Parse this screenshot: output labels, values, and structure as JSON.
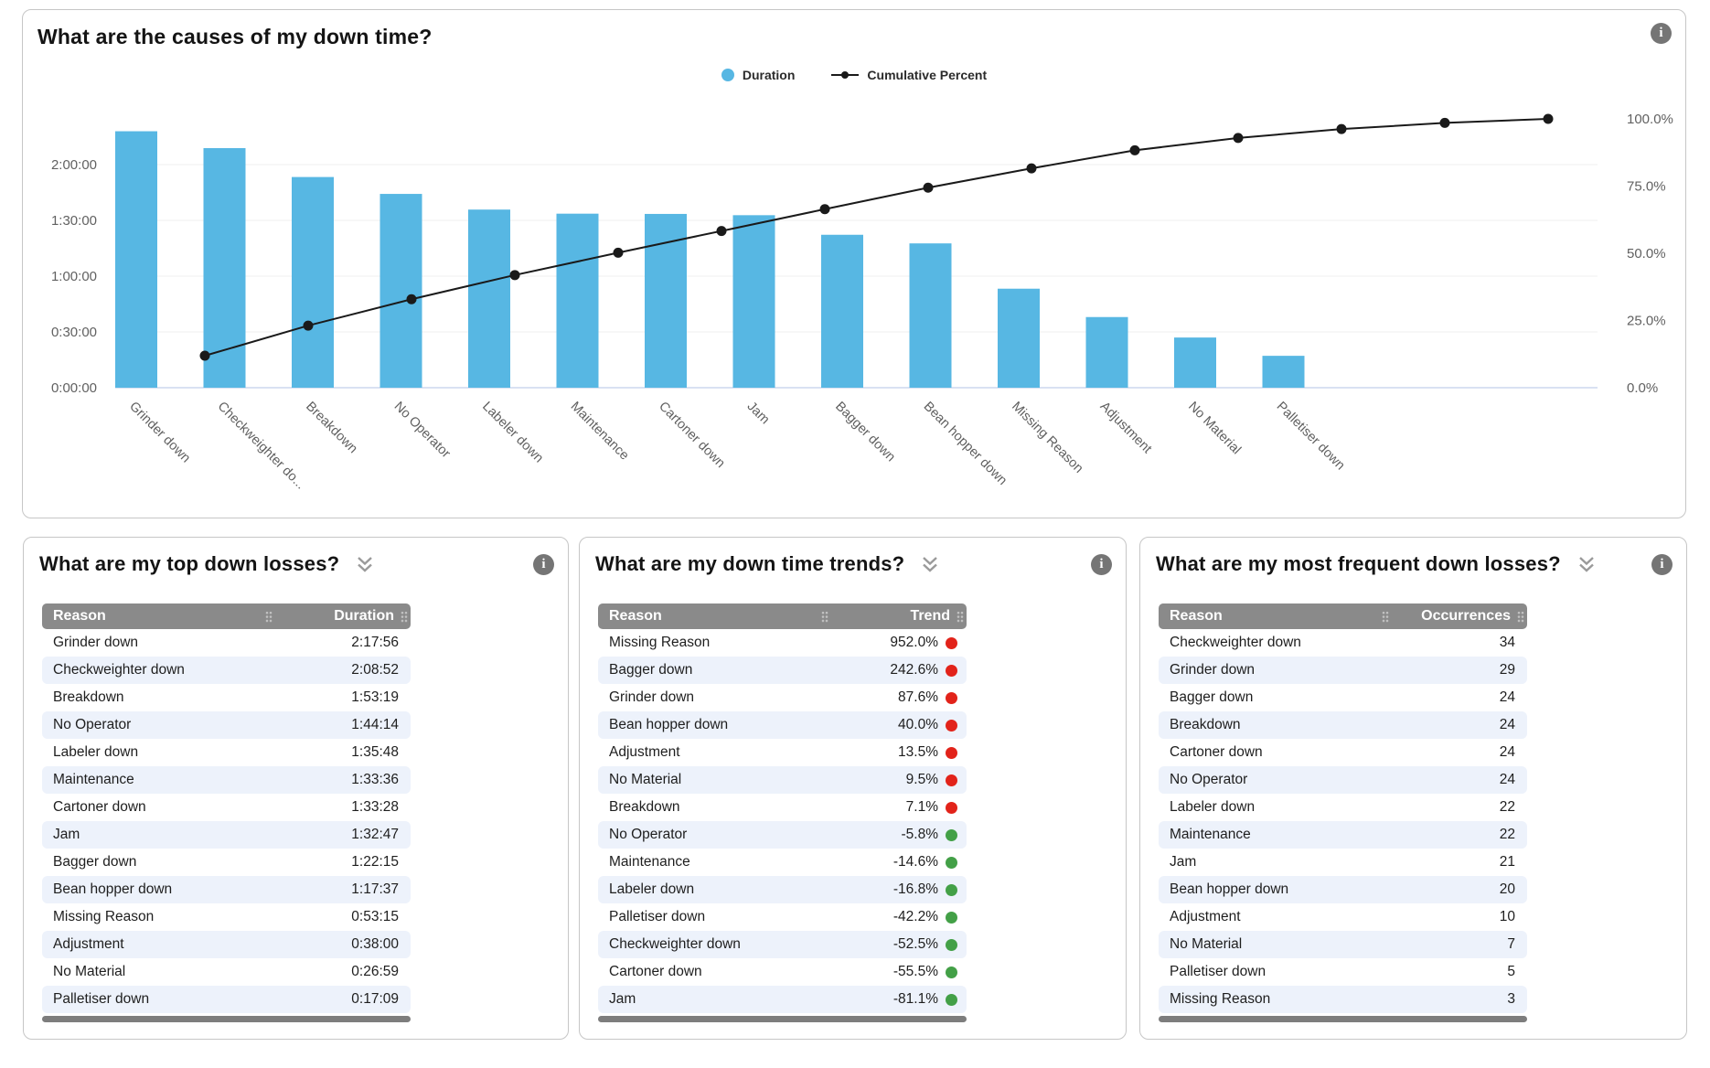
{
  "colors": {
    "bar_blue": "#57b7e3",
    "line_black": "#1a1a1a",
    "indicator": {
      "red": "#e2231a",
      "green": "#43a047"
    },
    "table_header_gray": "#8a8a8a",
    "row_stripe": "#edf2fb",
    "info_icon_gray": "#757575"
  },
  "icons": {
    "info_glyph": "i"
  },
  "pareto": {
    "title": "What are the causes of my down time?",
    "legend": [
      {
        "label": "Duration",
        "marker": "circle",
        "color": "#57b7e3"
      },
      {
        "label": "Cumulative Percent",
        "marker": "line-dot",
        "color": "#1a1a1a"
      }
    ]
  },
  "chart_data": {
    "type": "pareto (bar + cumulative line)",
    "title": "What are the causes of my down time?",
    "categories": [
      "Grinder down",
      "Checkweighter do...",
      "Breakdown",
      "No Operator",
      "Labeler down",
      "Maintenance",
      "Cartoner down",
      "Jam",
      "Bagger down",
      "Bean hopper down",
      "Missing Reason",
      "Adjustment",
      "No Material",
      "Palletiser down"
    ],
    "series": [
      {
        "name": "Duration",
        "type": "bar",
        "axis": "left",
        "color": "#57b7e3",
        "values": [
          "2:17:56",
          "2:08:52",
          "1:53:19",
          "1:44:14",
          "1:35:48",
          "1:33:36",
          "1:33:28",
          "1:32:47",
          "1:22:15",
          "1:17:37",
          "0:53:15",
          "0:38:00",
          "0:26:59",
          "0:17:09"
        ]
      },
      {
        "name": "Cumulative Percent",
        "type": "line",
        "axis": "right",
        "color": "#1a1a1a",
        "values": [
          11.9,
          23.1,
          32.9,
          41.9,
          50.2,
          58.3,
          66.4,
          74.4,
          81.6,
          88.3,
          92.9,
          96.2,
          98.5,
          100.0
        ]
      }
    ],
    "left_axis": {
      "ticks": [
        "0:00:00",
        "0:30:00",
        "1:00:00",
        "1:30:00",
        "2:00:00"
      ],
      "tick_interval_seconds": 1800,
      "max_seconds": 8670
    },
    "right_axis": {
      "ticks": [
        "0.0%",
        "25.0%",
        "50.0%",
        "75.0%",
        "100.0%"
      ],
      "min": 0,
      "max": 100
    },
    "legend_position": "top-center",
    "grid": "horizontal"
  },
  "table_panels": [
    {
      "title": "What are my top down losses?",
      "columns": [
        {
          "label": "Reason"
        },
        {
          "label": "Duration"
        }
      ],
      "rows": [
        {
          "reason": "Grinder down",
          "value": "2:17:56"
        },
        {
          "reason": "Checkweighter down",
          "value": "2:08:52"
        },
        {
          "reason": "Breakdown",
          "value": "1:53:19"
        },
        {
          "reason": "No Operator",
          "value": "1:44:14"
        },
        {
          "reason": "Labeler down",
          "value": "1:35:48"
        },
        {
          "reason": "Maintenance",
          "value": "1:33:36"
        },
        {
          "reason": "Cartoner down",
          "value": "1:33:28"
        },
        {
          "reason": "Jam",
          "value": "1:32:47"
        },
        {
          "reason": "Bagger down",
          "value": "1:22:15"
        },
        {
          "reason": "Bean hopper down",
          "value": "1:17:37"
        },
        {
          "reason": "Missing Reason",
          "value": "0:53:15"
        },
        {
          "reason": "Adjustment",
          "value": "0:38:00"
        },
        {
          "reason": "No Material",
          "value": "0:26:59"
        },
        {
          "reason": "Palletiser down",
          "value": "0:17:09"
        }
      ]
    },
    {
      "title": "What are my down time trends?",
      "columns": [
        {
          "label": "Reason"
        },
        {
          "label": "Trend"
        }
      ],
      "rows": [
        {
          "reason": "Missing Reason",
          "value": "952.0%",
          "indicator": "red"
        },
        {
          "reason": "Bagger down",
          "value": "242.6%",
          "indicator": "red"
        },
        {
          "reason": "Grinder down",
          "value": "87.6%",
          "indicator": "red"
        },
        {
          "reason": "Bean hopper down",
          "value": "40.0%",
          "indicator": "red"
        },
        {
          "reason": "Adjustment",
          "value": "13.5%",
          "indicator": "red"
        },
        {
          "reason": "No Material",
          "value": "9.5%",
          "indicator": "red"
        },
        {
          "reason": "Breakdown",
          "value": "7.1%",
          "indicator": "red"
        },
        {
          "reason": "No Operator",
          "value": "-5.8%",
          "indicator": "green"
        },
        {
          "reason": "Maintenance",
          "value": "-14.6%",
          "indicator": "green"
        },
        {
          "reason": "Labeler down",
          "value": "-16.8%",
          "indicator": "green"
        },
        {
          "reason": "Palletiser down",
          "value": "-42.2%",
          "indicator": "green"
        },
        {
          "reason": "Checkweighter down",
          "value": "-52.5%",
          "indicator": "green"
        },
        {
          "reason": "Cartoner down",
          "value": "-55.5%",
          "indicator": "green"
        },
        {
          "reason": "Jam",
          "value": "-81.1%",
          "indicator": "green"
        }
      ]
    },
    {
      "title": "What are my most frequent down losses?",
      "columns": [
        {
          "label": "Reason"
        },
        {
          "label": "Occurrences"
        }
      ],
      "rows": [
        {
          "reason": "Checkweighter down",
          "value": "34"
        },
        {
          "reason": "Grinder down",
          "value": "29"
        },
        {
          "reason": "Bagger down",
          "value": "24"
        },
        {
          "reason": "Breakdown",
          "value": "24"
        },
        {
          "reason": "Cartoner down",
          "value": "24"
        },
        {
          "reason": "No Operator",
          "value": "24"
        },
        {
          "reason": "Labeler down",
          "value": "22"
        },
        {
          "reason": "Maintenance",
          "value": "22"
        },
        {
          "reason": "Jam",
          "value": "21"
        },
        {
          "reason": "Bean hopper down",
          "value": "20"
        },
        {
          "reason": "Adjustment",
          "value": "10"
        },
        {
          "reason": "No Material",
          "value": "7"
        },
        {
          "reason": "Palletiser down",
          "value": "5"
        },
        {
          "reason": "Missing Reason",
          "value": "3"
        }
      ]
    }
  ]
}
